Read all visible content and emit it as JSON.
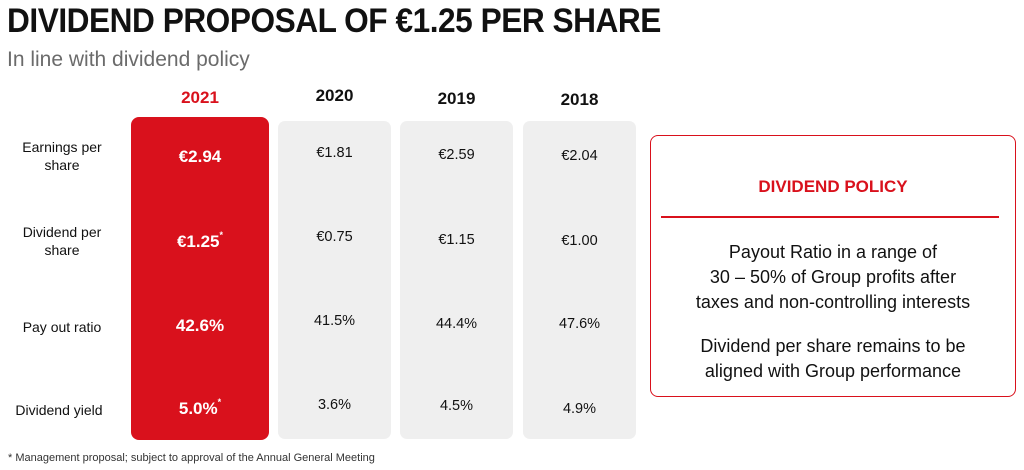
{
  "header": {
    "title": "DIVIDEND PROPOSAL OF €1.25 PER SHARE",
    "subtitle": "In line with dividend policy"
  },
  "table": {
    "years": [
      "2021",
      "2020",
      "2019",
      "2018"
    ],
    "rows": [
      {
        "label_lines": [
          "Earnings per",
          "share"
        ],
        "values": [
          "€2.94",
          "€1.81",
          "€2.59",
          "€2.04"
        ],
        "mark": ""
      },
      {
        "label_lines": [
          "Dividend per",
          "share"
        ],
        "values": [
          "€1.25",
          "€0.75",
          "€1.15",
          "€1.00"
        ],
        "mark": "*"
      },
      {
        "label_lines": [
          "Pay out ratio"
        ],
        "values": [
          "42.6%",
          "41.5%",
          "44.4%",
          "47.6%"
        ],
        "mark": ""
      },
      {
        "label_lines": [
          "Dividend yield"
        ],
        "values": [
          "5.0%",
          "3.6%",
          "4.5%",
          "4.9%"
        ],
        "mark": "*"
      }
    ]
  },
  "policy": {
    "title": "DIVIDEND POLICY",
    "paragraph1": [
      "Payout Ratio in a range of",
      "30 – 50% of Group profits after",
      "taxes and non-controlling interests"
    ],
    "paragraph2": [
      "Dividend per share remains to be",
      "aligned with Group performance"
    ]
  },
  "footnote": "* Management proposal; subject to approval of the Annual General Meeting",
  "colors": {
    "accent": "#d9111c",
    "panel": "#efefef",
    "text": "#111111",
    "subtitle": "#6b6b6b"
  }
}
